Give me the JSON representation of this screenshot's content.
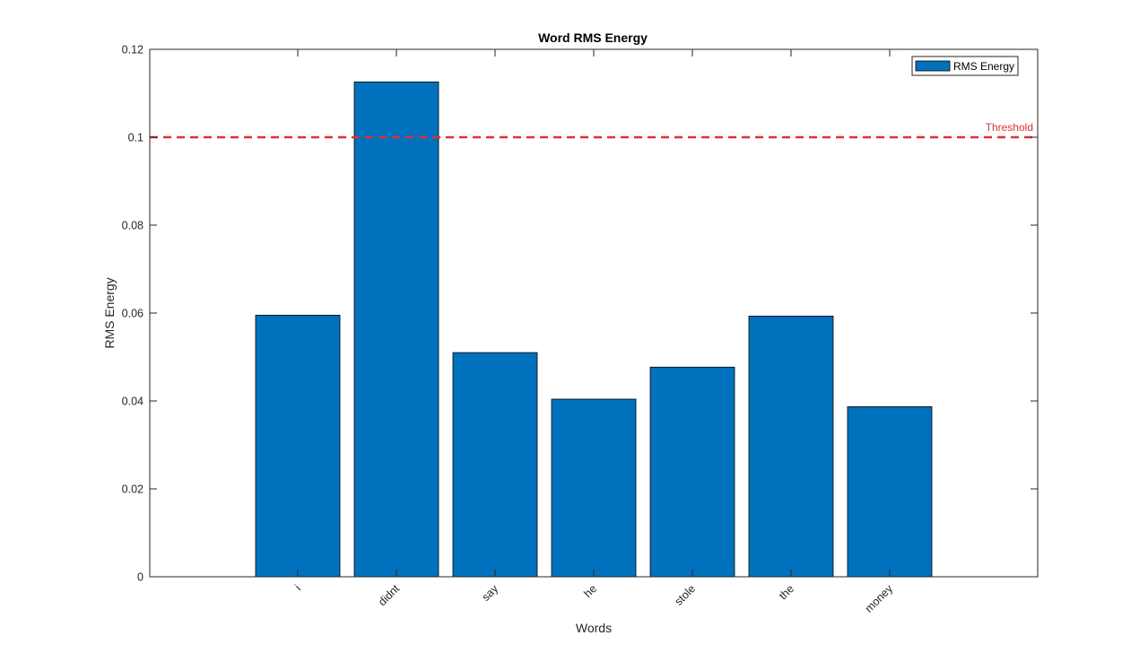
{
  "chart_data": {
    "type": "bar",
    "title": "Word RMS Energy",
    "xlabel": "Words",
    "ylabel": "RMS Energy",
    "categories": [
      "i",
      "didnt",
      "say",
      "he",
      "stole",
      "the",
      "money"
    ],
    "series": [
      {
        "name": "RMS Energy",
        "values": [
          0.0595,
          0.1126,
          0.051,
          0.0404,
          0.0477,
          0.0593,
          0.0387
        ],
        "color": "#0072BD"
      }
    ],
    "ylim": [
      0,
      0.12
    ],
    "yticks": [
      "0",
      "0.02",
      "0.04",
      "0.06",
      "0.08",
      "0.1",
      "0.12"
    ],
    "ytick_values": [
      0,
      0.02,
      0.04,
      0.06,
      0.08,
      0.1,
      0.12
    ],
    "threshold": {
      "value": 0.1,
      "label": "Threshold",
      "color": "#E03030"
    },
    "legend_position": "top-right",
    "grid": false
  }
}
